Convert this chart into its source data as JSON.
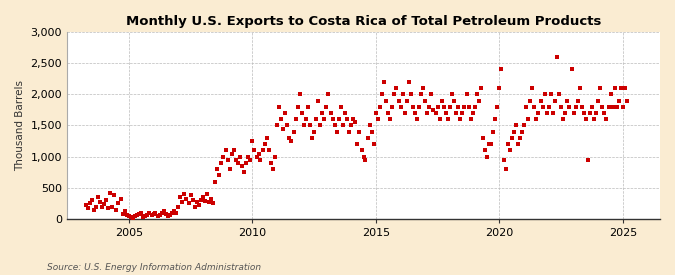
{
  "title": "Monthly U.S. Exports to Costa Rica of Total Petroleum Products",
  "ylabel": "Thousand Barrels",
  "source": "Source: U.S. Energy Information Administration",
  "fig_bg_color": "#faecd2",
  "plot_bg_color": "#ffffff",
  "marker_color": "#cc0000",
  "marker_size": 5,
  "xlim": [
    2002.5,
    2026.5
  ],
  "ylim": [
    0,
    3000
  ],
  "yticks": [
    0,
    500,
    1000,
    1500,
    2000,
    2500,
    3000
  ],
  "xticks": [
    2005,
    2010,
    2015,
    2020,
    2025
  ],
  "grid_color": "#bbbbbb",
  "data": [
    [
      2003.25,
      220
    ],
    [
      2003.33,
      180
    ],
    [
      2003.42,
      250
    ],
    [
      2003.5,
      300
    ],
    [
      2003.58,
      150
    ],
    [
      2003.67,
      200
    ],
    [
      2003.75,
      350
    ],
    [
      2003.83,
      280
    ],
    [
      2003.92,
      190
    ],
    [
      2004.0,
      240
    ],
    [
      2004.08,
      310
    ],
    [
      2004.17,
      180
    ],
    [
      2004.25,
      420
    ],
    [
      2004.33,
      200
    ],
    [
      2004.42,
      380
    ],
    [
      2004.5,
      150
    ],
    [
      2004.58,
      250
    ],
    [
      2004.67,
      320
    ],
    [
      2004.75,
      80
    ],
    [
      2004.83,
      120
    ],
    [
      2004.92,
      60
    ],
    [
      2005.0,
      50
    ],
    [
      2005.08,
      30
    ],
    [
      2005.17,
      20
    ],
    [
      2005.25,
      40
    ],
    [
      2005.33,
      60
    ],
    [
      2005.42,
      80
    ],
    [
      2005.5,
      100
    ],
    [
      2005.58,
      30
    ],
    [
      2005.67,
      50
    ],
    [
      2005.75,
      70
    ],
    [
      2005.83,
      90
    ],
    [
      2005.92,
      60
    ],
    [
      2006.0,
      80
    ],
    [
      2006.08,
      100
    ],
    [
      2006.17,
      40
    ],
    [
      2006.25,
      60
    ],
    [
      2006.33,
      90
    ],
    [
      2006.42,
      120
    ],
    [
      2006.5,
      80
    ],
    [
      2006.58,
      50
    ],
    [
      2006.67,
      70
    ],
    [
      2006.75,
      100
    ],
    [
      2006.83,
      130
    ],
    [
      2006.92,
      90
    ],
    [
      2007.0,
      200
    ],
    [
      2007.08,
      350
    ],
    [
      2007.17,
      280
    ],
    [
      2007.25,
      400
    ],
    [
      2007.33,
      320
    ],
    [
      2007.42,
      250
    ],
    [
      2007.5,
      380
    ],
    [
      2007.58,
      300
    ],
    [
      2007.67,
      200
    ],
    [
      2007.75,
      280
    ],
    [
      2007.83,
      220
    ],
    [
      2007.92,
      300
    ],
    [
      2008.0,
      350
    ],
    [
      2008.08,
      290
    ],
    [
      2008.17,
      400
    ],
    [
      2008.25,
      280
    ],
    [
      2008.33,
      320
    ],
    [
      2008.42,
      260
    ],
    [
      2008.5,
      600
    ],
    [
      2008.58,
      800
    ],
    [
      2008.67,
      700
    ],
    [
      2008.75,
      900
    ],
    [
      2008.83,
      1000
    ],
    [
      2008.92,
      1100
    ],
    [
      2009.0,
      950
    ],
    [
      2009.08,
      800
    ],
    [
      2009.17,
      1050
    ],
    [
      2009.25,
      1100
    ],
    [
      2009.33,
      950
    ],
    [
      2009.42,
      900
    ],
    [
      2009.5,
      1000
    ],
    [
      2009.58,
      850
    ],
    [
      2009.67,
      750
    ],
    [
      2009.75,
      900
    ],
    [
      2009.83,
      1000
    ],
    [
      2009.92,
      950
    ],
    [
      2010.0,
      1250
    ],
    [
      2010.08,
      1100
    ],
    [
      2010.17,
      1000
    ],
    [
      2010.25,
      1050
    ],
    [
      2010.33,
      950
    ],
    [
      2010.42,
      1100
    ],
    [
      2010.5,
      1200
    ],
    [
      2010.58,
      1300
    ],
    [
      2010.67,
      1100
    ],
    [
      2010.75,
      900
    ],
    [
      2010.83,
      800
    ],
    [
      2010.92,
      1000
    ],
    [
      2011.0,
      1500
    ],
    [
      2011.08,
      1800
    ],
    [
      2011.17,
      1600
    ],
    [
      2011.25,
      1450
    ],
    [
      2011.33,
      1700
    ],
    [
      2011.42,
      1500
    ],
    [
      2011.5,
      1300
    ],
    [
      2011.58,
      1250
    ],
    [
      2011.67,
      1400
    ],
    [
      2011.75,
      1600
    ],
    [
      2011.83,
      1800
    ],
    [
      2011.92,
      2000
    ],
    [
      2012.0,
      1700
    ],
    [
      2012.08,
      1500
    ],
    [
      2012.17,
      1600
    ],
    [
      2012.25,
      1800
    ],
    [
      2012.33,
      1500
    ],
    [
      2012.42,
      1300
    ],
    [
      2012.5,
      1400
    ],
    [
      2012.58,
      1600
    ],
    [
      2012.67,
      1900
    ],
    [
      2012.75,
      1500
    ],
    [
      2012.83,
      1700
    ],
    [
      2012.92,
      1600
    ],
    [
      2013.0,
      1800
    ],
    [
      2013.08,
      2000
    ],
    [
      2013.17,
      1700
    ],
    [
      2013.25,
      1600
    ],
    [
      2013.33,
      1500
    ],
    [
      2013.42,
      1400
    ],
    [
      2013.5,
      1600
    ],
    [
      2013.58,
      1800
    ],
    [
      2013.67,
      1500
    ],
    [
      2013.75,
      1700
    ],
    [
      2013.83,
      1600
    ],
    [
      2013.92,
      1400
    ],
    [
      2014.0,
      1500
    ],
    [
      2014.08,
      1600
    ],
    [
      2014.17,
      1550
    ],
    [
      2014.25,
      1200
    ],
    [
      2014.33,
      1400
    ],
    [
      2014.42,
      1100
    ],
    [
      2014.5,
      1000
    ],
    [
      2014.58,
      950
    ],
    [
      2014.67,
      1300
    ],
    [
      2014.75,
      1500
    ],
    [
      2014.83,
      1400
    ],
    [
      2014.92,
      1200
    ],
    [
      2015.0,
      1700
    ],
    [
      2015.08,
      1600
    ],
    [
      2015.17,
      1800
    ],
    [
      2015.25,
      2000
    ],
    [
      2015.33,
      2200
    ],
    [
      2015.42,
      1900
    ],
    [
      2015.5,
      1700
    ],
    [
      2015.58,
      1600
    ],
    [
      2015.67,
      1800
    ],
    [
      2015.75,
      2000
    ],
    [
      2015.83,
      2100
    ],
    [
      2015.92,
      1900
    ],
    [
      2016.0,
      1800
    ],
    [
      2016.08,
      2000
    ],
    [
      2016.17,
      1700
    ],
    [
      2016.25,
      1900
    ],
    [
      2016.33,
      2200
    ],
    [
      2016.42,
      2000
    ],
    [
      2016.5,
      1800
    ],
    [
      2016.58,
      1700
    ],
    [
      2016.67,
      1600
    ],
    [
      2016.75,
      1800
    ],
    [
      2016.83,
      2000
    ],
    [
      2016.92,
      2100
    ],
    [
      2017.0,
      1900
    ],
    [
      2017.08,
      1700
    ],
    [
      2017.17,
      1800
    ],
    [
      2017.25,
      2000
    ],
    [
      2017.33,
      1750
    ],
    [
      2017.42,
      1700
    ],
    [
      2017.5,
      1800
    ],
    [
      2017.58,
      1600
    ],
    [
      2017.67,
      1900
    ],
    [
      2017.75,
      1800
    ],
    [
      2017.83,
      1700
    ],
    [
      2017.92,
      1600
    ],
    [
      2018.0,
      1800
    ],
    [
      2018.08,
      2000
    ],
    [
      2018.17,
      1900
    ],
    [
      2018.25,
      1700
    ],
    [
      2018.33,
      1800
    ],
    [
      2018.42,
      1600
    ],
    [
      2018.5,
      1700
    ],
    [
      2018.58,
      1800
    ],
    [
      2018.67,
      2000
    ],
    [
      2018.75,
      1800
    ],
    [
      2018.83,
      1600
    ],
    [
      2018.92,
      1700
    ],
    [
      2019.0,
      1800
    ],
    [
      2019.08,
      2000
    ],
    [
      2019.17,
      1900
    ],
    [
      2019.25,
      2100
    ],
    [
      2019.33,
      1300
    ],
    [
      2019.42,
      1100
    ],
    [
      2019.5,
      1000
    ],
    [
      2019.58,
      1200
    ],
    [
      2019.67,
      1200
    ],
    [
      2019.75,
      1400
    ],
    [
      2019.83,
      1600
    ],
    [
      2019.92,
      1800
    ],
    [
      2020.0,
      2100
    ],
    [
      2020.08,
      2400
    ],
    [
      2020.17,
      950
    ],
    [
      2020.25,
      800
    ],
    [
      2020.33,
      1200
    ],
    [
      2020.42,
      1100
    ],
    [
      2020.5,
      1300
    ],
    [
      2020.58,
      1400
    ],
    [
      2020.67,
      1500
    ],
    [
      2020.75,
      1200
    ],
    [
      2020.83,
      1300
    ],
    [
      2020.92,
      1400
    ],
    [
      2021.0,
      1500
    ],
    [
      2021.08,
      1800
    ],
    [
      2021.17,
      1600
    ],
    [
      2021.25,
      1900
    ],
    [
      2021.33,
      2100
    ],
    [
      2021.42,
      1800
    ],
    [
      2021.5,
      1600
    ],
    [
      2021.58,
      1700
    ],
    [
      2021.67,
      1900
    ],
    [
      2021.75,
      1800
    ],
    [
      2021.83,
      2000
    ],
    [
      2021.92,
      1700
    ],
    [
      2022.0,
      1800
    ],
    [
      2022.08,
      2000
    ],
    [
      2022.17,
      1700
    ],
    [
      2022.25,
      1900
    ],
    [
      2022.33,
      2600
    ],
    [
      2022.42,
      2000
    ],
    [
      2022.5,
      1800
    ],
    [
      2022.58,
      1600
    ],
    [
      2022.67,
      1700
    ],
    [
      2022.75,
      1900
    ],
    [
      2022.83,
      1800
    ],
    [
      2022.92,
      2400
    ],
    [
      2023.0,
      1700
    ],
    [
      2023.08,
      1800
    ],
    [
      2023.17,
      1900
    ],
    [
      2023.25,
      2100
    ],
    [
      2023.33,
      1800
    ],
    [
      2023.42,
      1700
    ],
    [
      2023.5,
      1600
    ],
    [
      2023.58,
      950
    ],
    [
      2023.67,
      1700
    ],
    [
      2023.75,
      1800
    ],
    [
      2023.83,
      1600
    ],
    [
      2023.92,
      1700
    ],
    [
      2024.0,
      1900
    ],
    [
      2024.08,
      2100
    ],
    [
      2024.17,
      1800
    ],
    [
      2024.25,
      1700
    ],
    [
      2024.33,
      1600
    ],
    [
      2024.42,
      1800
    ],
    [
      2024.5,
      2000
    ],
    [
      2024.58,
      1800
    ],
    [
      2024.67,
      2100
    ],
    [
      2024.75,
      1800
    ],
    [
      2024.83,
      1900
    ],
    [
      2024.92,
      2100
    ],
    [
      2025.0,
      1800
    ],
    [
      2025.08,
      2100
    ],
    [
      2025.17,
      1900
    ]
  ]
}
